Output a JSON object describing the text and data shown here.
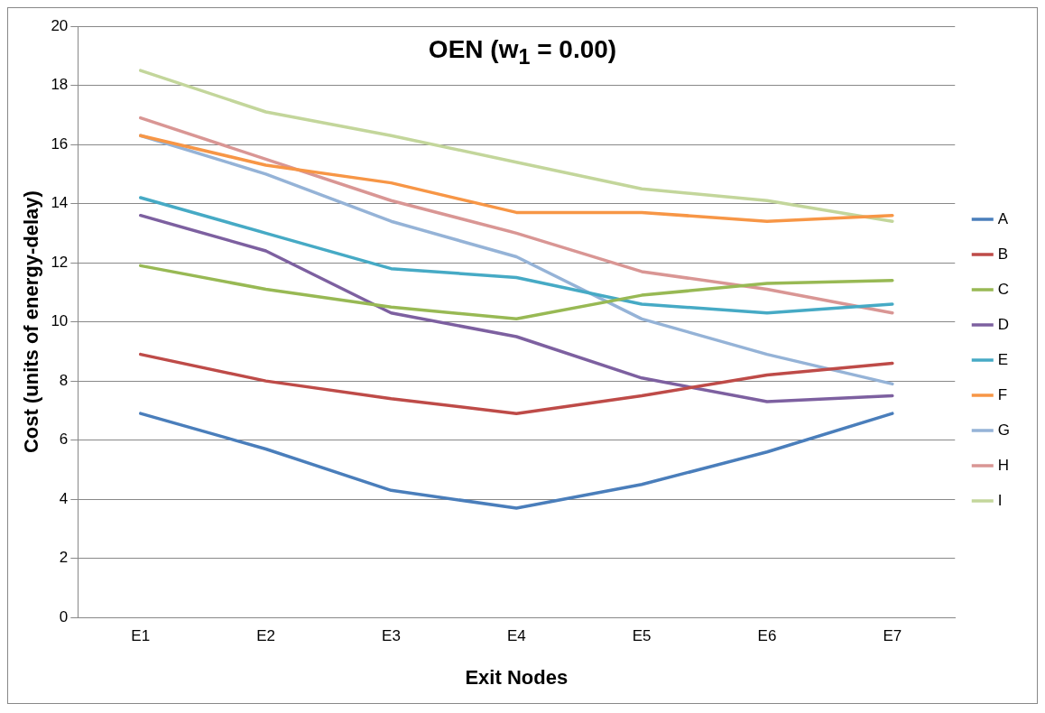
{
  "chart_data": {
    "type": "line",
    "title": "OEN (w$_{1}$ = 0.00)",
    "xlabel": "Exit Nodes",
    "ylabel": "Cost (units of energy-delay)",
    "categories": [
      "E1",
      "E2",
      "E3",
      "E4",
      "E5",
      "E6",
      "E7"
    ],
    "ylim": [
      0,
      20
    ],
    "yticks": [
      0,
      2,
      4,
      6,
      8,
      10,
      12,
      14,
      16,
      18,
      20
    ],
    "grid": "y",
    "legend": "right",
    "marker": "none",
    "line_style": "solid",
    "series": [
      {
        "name": "A",
        "color": "#4a7ebb",
        "values": [
          6.9,
          5.7,
          4.3,
          3.7,
          4.5,
          5.6,
          6.9
        ]
      },
      {
        "name": "B",
        "color": "#be4b48",
        "values": [
          8.9,
          8.0,
          7.4,
          6.9,
          7.5,
          8.2,
          8.6
        ]
      },
      {
        "name": "C",
        "color": "#98b954",
        "values": [
          11.9,
          11.1,
          10.5,
          10.1,
          10.9,
          11.3,
          11.4
        ]
      },
      {
        "name": "D",
        "color": "#7d60a0",
        "values": [
          13.6,
          12.4,
          10.3,
          9.5,
          8.1,
          7.3,
          7.5
        ]
      },
      {
        "name": "E",
        "color": "#46aac5",
        "values": [
          14.2,
          13.0,
          11.8,
          11.5,
          10.6,
          10.3,
          10.6
        ]
      },
      {
        "name": "F",
        "color": "#f79646",
        "values": [
          16.3,
          15.3,
          14.7,
          13.7,
          13.7,
          13.4,
          13.6
        ]
      },
      {
        "name": "G",
        "color": "#95b3d7",
        "values": [
          16.3,
          15.0,
          13.4,
          12.2,
          10.1,
          8.9,
          7.9
        ]
      },
      {
        "name": "H",
        "color": "#d99694",
        "values": [
          16.9,
          15.5,
          14.1,
          13.0,
          11.7,
          11.1,
          10.3
        ]
      },
      {
        "name": "I",
        "color": "#c3d69b",
        "values": [
          18.5,
          17.1,
          16.3,
          15.4,
          14.5,
          14.1,
          13.4
        ]
      }
    ]
  }
}
